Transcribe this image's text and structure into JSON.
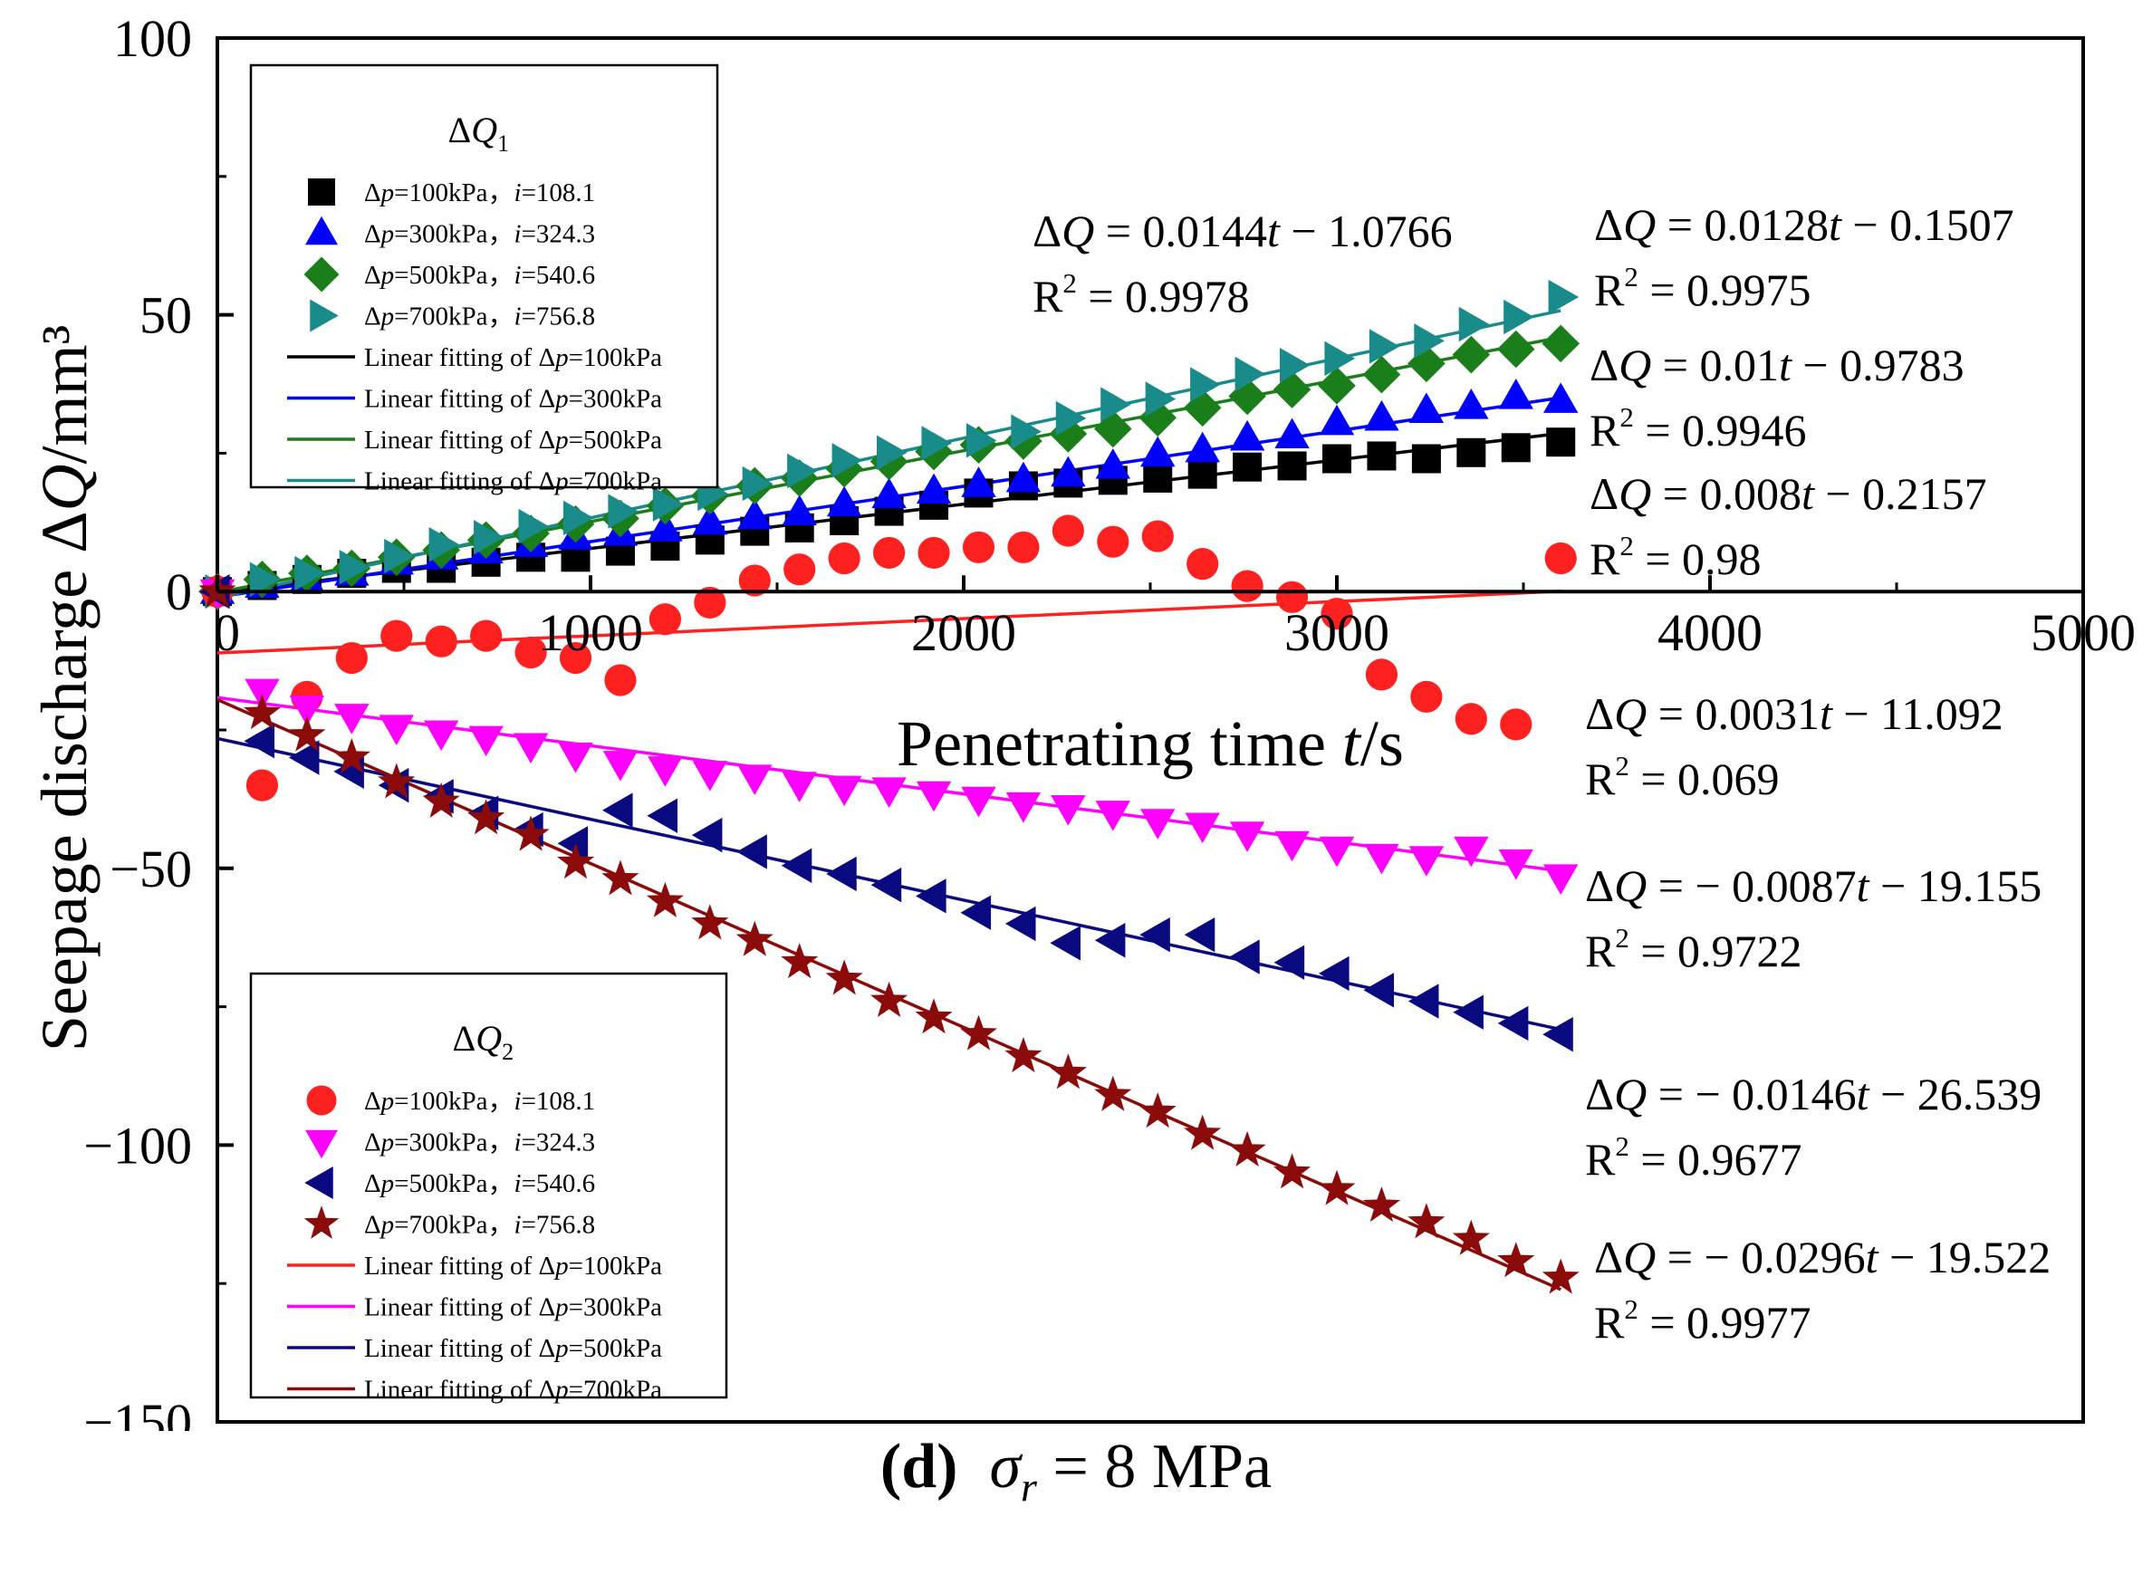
{
  "chart_data": {
    "type": "scatter",
    "xlabel": "Penetrating time t/s",
    "ylabel": "Seepage discharge ΔQ/mm³",
    "xlim": [
      0,
      5000
    ],
    "ylim": [
      -150,
      100
    ],
    "xticks": [
      0,
      1000,
      2000,
      3000,
      4000,
      5000
    ],
    "yticks": [
      -150,
      -100,
      -50,
      0,
      50,
      100
    ],
    "x_tick_labels": [
      "0",
      "1000",
      "2000",
      "3000",
      "4000",
      "5000"
    ],
    "y_tick_labels": [
      "−150",
      "−100",
      "−50",
      "0",
      "50",
      "100"
    ],
    "legend_q1": {
      "title": "ΔQ1",
      "entries": [
        {
          "name": "Δp=100kPa，i=108.1",
          "marker": "square",
          "color": "#000000"
        },
        {
          "name": "Δp=300kPa，i=324.3",
          "marker": "triangle-up",
          "color": "#0000ff"
        },
        {
          "name": "Δp=500kPa，i=540.6",
          "marker": "diamond",
          "color": "#1a7f1a"
        },
        {
          "name": "Δp=700kPa，i=756.8",
          "marker": "triangle-right",
          "color": "#1a8b8b"
        },
        {
          "name": "Linear fitting of Δp=100kPa",
          "marker": "line",
          "color": "#000000"
        },
        {
          "name": "Linear fitting of Δp=300kPa",
          "marker": "line",
          "color": "#0000ff"
        },
        {
          "name": "Linear fitting of Δp=500kPa",
          "marker": "line",
          "color": "#1a7f1a"
        },
        {
          "name": "Linear fitting of Δp=700kPa",
          "marker": "line",
          "color": "#1a8b8b"
        }
      ]
    },
    "legend_q2": {
      "title": "ΔQ2",
      "entries": [
        {
          "name": "Δp=100kPa，i=108.1",
          "marker": "circle",
          "color": "#ff2020"
        },
        {
          "name": "Δp=300kPa，i=324.3",
          "marker": "triangle-down",
          "color": "#ff00ff"
        },
        {
          "name": "Δp=500kPa，i=540.6",
          "marker": "triangle-left",
          "color": "#0a0a80"
        },
        {
          "name": "Δp=700kPa，i=756.8",
          "marker": "star",
          "color": "#8b0a0a"
        },
        {
          "name": "Linear fitting of Δp=100kPa",
          "marker": "line",
          "color": "#ff2020"
        },
        {
          "name": "Linear fitting of Δp=300kPa",
          "marker": "line",
          "color": "#ff00ff"
        },
        {
          "name": "Linear fitting of Δp=500kPa",
          "marker": "line",
          "color": "#0a0a80"
        },
        {
          "name": "Linear fitting of Δp=700kPa",
          "marker": "line",
          "color": "#8b0a0a"
        }
      ]
    },
    "t": [
      0,
      120,
      240,
      360,
      480,
      600,
      720,
      840,
      960,
      1080,
      1200,
      1320,
      1440,
      1560,
      1680,
      1800,
      1920,
      2040,
      2160,
      2280,
      2400,
      2520,
      2640,
      2760,
      2880,
      3000,
      3120,
      3240,
      3360,
      3480,
      3600
    ],
    "series": [
      {
        "name": "ΔQ1 Δp=100kPa",
        "marker": "square",
        "color": "#000000",
        "values": [
          0,
          1.1,
          2.2,
          3.3,
          4.2,
          4.2,
          5.3,
          6.2,
          6.2,
          7.3,
          8.2,
          9.3,
          10.9,
          11.5,
          12.8,
          14.5,
          15.6,
          17.8,
          19.1,
          19.6,
          20.1,
          20.5,
          21.2,
          22.5,
          22.7,
          24,
          24.5,
          24,
          25.1,
          26,
          27
        ]
      },
      {
        "name": "ΔQ1 Δp=300kPa",
        "marker": "triangle-up",
        "color": "#0000ff",
        "values": [
          0,
          1.1,
          2.2,
          3.3,
          5.3,
          6.2,
          7.3,
          8.5,
          9.8,
          10.5,
          11.3,
          12.5,
          13.5,
          14.2,
          15.8,
          17.3,
          18.1,
          19.3,
          20.2,
          21.2,
          22.6,
          24.8,
          25.6,
          27.7,
          28.1,
          30.5,
          31.3,
          32.7,
          33.4,
          35.2,
          34.5
        ]
      },
      {
        "name": "ΔQ1 Δp=500kPa",
        "marker": "diamond",
        "color": "#1a7f1a",
        "values": [
          0,
          2.2,
          3.3,
          4.2,
          6.2,
          7.5,
          9.3,
          10.5,
          12.2,
          13.2,
          15.5,
          17.3,
          19.1,
          20.5,
          22.2,
          23.5,
          25.3,
          26.5,
          27.2,
          28.5,
          29.4,
          31.4,
          33.2,
          35.3,
          36.5,
          37.2,
          39.2,
          41.2,
          42.8,
          43.8,
          44.8
        ]
      },
      {
        "name": "ΔQ1 Δp=700kPa",
        "marker": "triangle-right",
        "color": "#1a8b8b",
        "values": [
          0,
          2.2,
          3.3,
          4.4,
          6.4,
          8.5,
          9.8,
          11.8,
          13.3,
          14.5,
          15.8,
          17.7,
          19.5,
          21.8,
          23.7,
          25.1,
          26.8,
          27.3,
          28.9,
          31.3,
          33.8,
          34.8,
          37.4,
          39.3,
          40.9,
          42.1,
          44.3,
          45.3,
          48.3,
          49.6,
          53.2
        ]
      },
      {
        "name": "ΔQ2 Δp=100kPa",
        "marker": "circle",
        "color": "#ff2020",
        "values": [
          0,
          -35,
          -19,
          -12,
          -8,
          -9,
          -8,
          -11,
          -12,
          -16,
          -5,
          -2,
          2,
          4,
          6,
          7,
          7,
          8,
          8,
          11,
          9,
          10,
          5,
          1,
          -1,
          -4,
          -15,
          -19,
          -23,
          -24,
          6
        ]
      },
      {
        "name": "ΔQ2 Δp=300kPa",
        "marker": "triangle-down",
        "color": "#ff00ff",
        "values": [
          0,
          -18,
          -21,
          -22.5,
          -24.5,
          -25.5,
          -26.5,
          -27.8,
          -29.5,
          -31,
          -32,
          -32.8,
          -33.5,
          -34.8,
          -35.5,
          -35.8,
          -36.5,
          -37.5,
          -38.5,
          -39,
          -40,
          -41.5,
          -42.2,
          -43.8,
          -45.5,
          -46.5,
          -47.8,
          -48.2,
          -46.5,
          -48.8,
          -51.5
        ]
      },
      {
        "name": "ΔQ2 Δp=500kPa",
        "marker": "triangle-left",
        "color": "#0a0a80",
        "values": [
          0,
          -27,
          -30,
          -32.5,
          -35,
          -37,
          -40,
          -43,
          -45.5,
          -39.5,
          -40.5,
          -44,
          -47,
          -49.5,
          -51,
          -53,
          -55,
          -58,
          -60,
          -63.5,
          -63,
          -62,
          -62,
          -66,
          -67,
          -69,
          -72,
          -74,
          -76,
          -78,
          -80
        ]
      },
      {
        "name": "ΔQ2 Δp=700kPa",
        "marker": "star",
        "color": "#8b0a0a",
        "values": [
          0,
          -22,
          -26,
          -30,
          -34.5,
          -38,
          -41,
          -44,
          -49,
          -52,
          -56,
          -60,
          -63,
          -67,
          -70,
          -74,
          -77,
          -80,
          -84,
          -87,
          -91,
          -94,
          -98,
          -101,
          -105,
          -108,
          -111,
          -114,
          -117,
          -121,
          -124
        ]
      }
    ],
    "fits": [
      {
        "name": "Linear fitting of ΔQ1 Δp=100kPa",
        "color": "#000000",
        "slope": 0.008,
        "intercept": -0.2157,
        "x_range": [
          0,
          3600
        ],
        "equation": "ΔQ = 0.008t − 0.2157",
        "r2": "R2 = 0.98"
      },
      {
        "name": "Linear fitting of ΔQ1 Δp=300kPa",
        "color": "#0000ff",
        "slope": 0.01,
        "intercept": -0.9783,
        "x_range": [
          0,
          3600
        ],
        "equation": "ΔQ = 0.01t − 0.9783",
        "r2": "R2 = 0.9946"
      },
      {
        "name": "Linear fitting of ΔQ1 Δp=500kPa",
        "color": "#1a7f1a",
        "slope": 0.0128,
        "intercept": -0.1507,
        "x_range": [
          0,
          3600
        ],
        "equation": "ΔQ = 0.0128t − 0.1507",
        "r2": "R2 = 0.9975"
      },
      {
        "name": "Linear fitting of ΔQ1 Δp=700kPa",
        "color": "#1a8b8b",
        "slope": 0.0144,
        "intercept": -1.0766,
        "x_range": [
          0,
          3600
        ],
        "equation": "ΔQ = 0.0144t − 1.0766",
        "r2": "R2 = 0.9978"
      },
      {
        "name": "Linear fitting of ΔQ2 Δp=100kPa",
        "color": "#ff2020",
        "slope": 0.0031,
        "intercept": -11.092,
        "x_range": [
          0,
          3600
        ],
        "equation": "ΔQ = 0.0031t − 11.092",
        "r2": "R2 = 0.069"
      },
      {
        "name": "Linear fitting of ΔQ2 Δp=300kPa",
        "color": "#ff00ff",
        "slope": -0.0087,
        "intercept": -19.155,
        "x_range": [
          0,
          3600
        ],
        "equation": "ΔQ = − 0.0087t − 19.155",
        "r2": "R2 = 0.9722"
      },
      {
        "name": "Linear fitting of ΔQ2 Δp=500kPa",
        "color": "#0a0a80",
        "slope": -0.0146,
        "intercept": -26.539,
        "x_range": [
          0,
          3600
        ],
        "equation": "ΔQ = − 0.0146t − 26.539",
        "r2": "R2 = 0.9677"
      },
      {
        "name": "Linear fitting of ΔQ2 Δp=700kPa",
        "color": "#8b0a0a",
        "slope": -0.0296,
        "intercept": -19.522,
        "x_range": [
          0,
          3600
        ],
        "equation": "ΔQ = − 0.0296t − 19.522",
        "r2": "R2 = 0.9977"
      }
    ]
  },
  "caption": {
    "label": "(d)",
    "symbol": "σ",
    "subscript": "r",
    "value": "= 8 MPa"
  }
}
